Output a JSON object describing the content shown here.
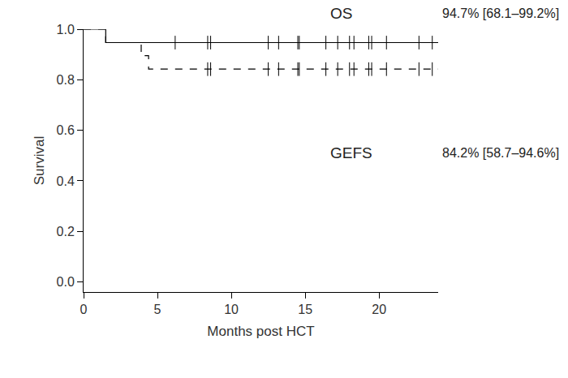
{
  "chart_data": {
    "type": "kaplan_meier",
    "x_label": "Months post HCT",
    "y_label": "Survival",
    "xlim": [
      0,
      24
    ],
    "ylim": [
      -0.04,
      1.0
    ],
    "xticks": [
      0,
      5,
      10,
      15,
      20
    ],
    "yticks": [
      {
        "value": 0.0,
        "label": "0.0"
      },
      {
        "value": 0.2,
        "label": "0.2"
      },
      {
        "value": 0.4,
        "label": "0.4"
      },
      {
        "value": 0.6,
        "label": "0.6"
      },
      {
        "value": 0.8,
        "label": "0.8"
      },
      {
        "value": 1.0,
        "label": "1.0"
      }
    ],
    "grid": false,
    "series": [
      {
        "name": "OS",
        "annotation": "94.7% [68.1–99.2%]",
        "color": "#000000",
        "line_style": "solid",
        "marker": "censor",
        "x": [
          0,
          1.5,
          24
        ],
        "values": [
          1.0,
          0.947,
          0.947
        ],
        "censored": [
          6.2,
          8.4,
          8.6,
          12.5,
          13.2,
          14.5,
          14.6,
          16.4,
          17.2,
          18.0,
          18.3,
          19.3,
          19.5,
          20.5,
          22.7,
          23.6
        ]
      },
      {
        "name": "GEFS",
        "annotation": "84.2% [58.7–94.6%]",
        "color": "#000000",
        "line_style": "dashed",
        "marker": "censor",
        "x": [
          0,
          1.5,
          3.9,
          4.4,
          24
        ],
        "values": [
          1.0,
          0.947,
          0.895,
          0.842,
          0.842
        ],
        "censored": [
          8.4,
          8.6,
          12.5,
          13.2,
          14.5,
          14.6,
          16.4,
          17.2,
          18.0,
          18.3,
          19.3,
          19.5,
          20.5,
          22.7,
          23.6
        ]
      }
    ]
  }
}
